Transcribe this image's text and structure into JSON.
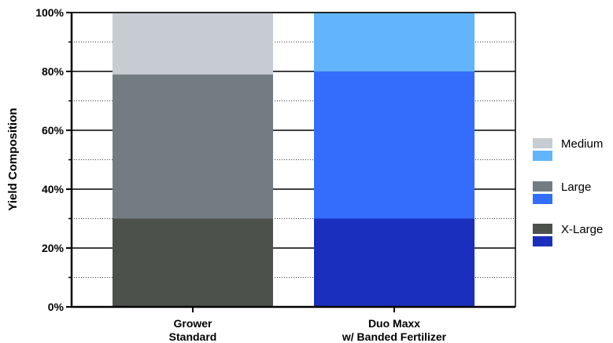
{
  "chart_data": {
    "type": "bar",
    "stacked": true,
    "categories": [
      [
        "Grower",
        "Standard"
      ],
      [
        "Duo Maxx",
        "w/ Banded Fertilizer"
      ]
    ],
    "series": [
      {
        "name": "X-Large",
        "values": [
          30,
          30
        ],
        "colors": [
          "#4d514c",
          "#1a2fbd"
        ]
      },
      {
        "name": "Large",
        "values": [
          49,
          50
        ],
        "colors": [
          "#737c82",
          "#336dfb"
        ]
      },
      {
        "name": "Medium",
        "values": [
          21,
          20
        ],
        "colors": [
          "#c6ccd2",
          "#62b5fc"
        ]
      }
    ],
    "ylabel": "Yield Composition",
    "ylim": [
      0,
      100
    ],
    "ytick_labels": [
      "0%",
      "20%",
      "40%",
      "60%",
      "80%",
      "100%"
    ],
    "minor_ticks": [
      10,
      30,
      50,
      70,
      90
    ],
    "grid": "minor-dotted",
    "legend": {
      "placement": "right",
      "order": [
        "Medium",
        "Large",
        "X-Large"
      ]
    }
  }
}
